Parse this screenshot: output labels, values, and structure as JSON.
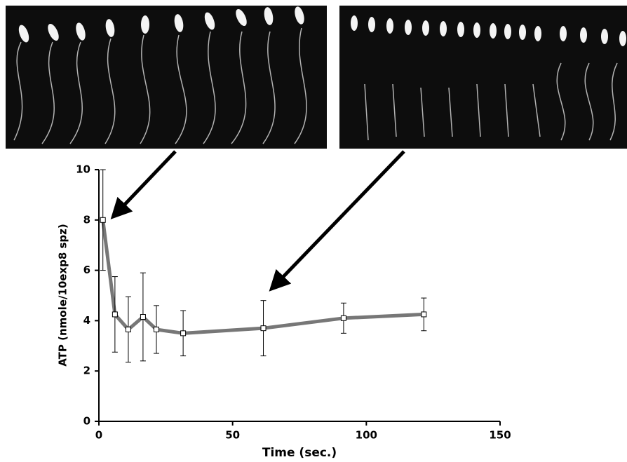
{
  "chart_data": {
    "type": "line",
    "x": [
      1.5,
      6,
      11,
      16.5,
      21.5,
      31.5,
      61.5,
      91.5,
      121.5
    ],
    "series": [
      {
        "color": "#777777",
        "values": [
          8.0,
          4.25,
          3.65,
          4.15,
          3.65,
          3.5,
          3.7,
          4.1,
          4.25
        ],
        "errors": [
          2.0,
          1.5,
          1.3,
          1.75,
          0.95,
          0.9,
          1.1,
          0.6,
          0.65
        ]
      }
    ],
    "xlabel": "Time (sec.)",
    "ylabel": "ATP (nmole/10exp8 spz)",
    "xlim": [
      0,
      150
    ],
    "xticks": [
      0,
      50,
      100,
      150
    ],
    "ylim": [
      0,
      10
    ],
    "yticks": [
      0,
      2,
      4,
      6,
      8,
      10
    ]
  }
}
